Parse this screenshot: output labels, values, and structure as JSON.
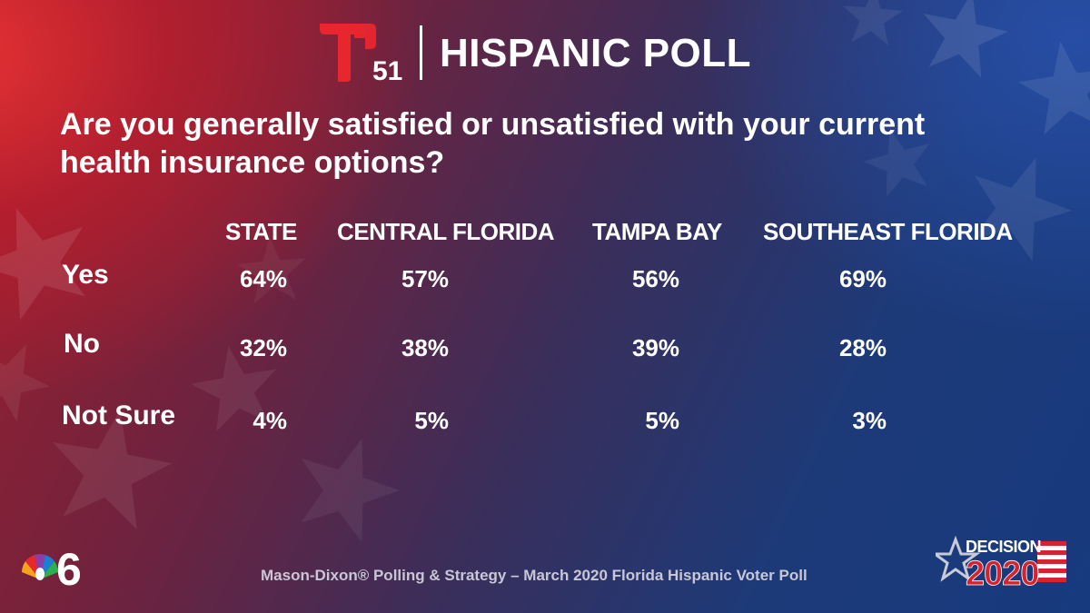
{
  "header": {
    "logo_number": "51",
    "title": "HISPANIC POLL"
  },
  "question": "Are you generally satisfied or unsatisfied with your current health insurance options?",
  "chart_data": {
    "type": "table",
    "columns": [
      "STATE",
      "CENTRAL FLORIDA",
      "TAMPA BAY",
      "SOUTHEAST FLORIDA"
    ],
    "rows": [
      {
        "label": "Yes",
        "values": [
          "64%",
          "57%",
          "56%",
          "69%"
        ]
      },
      {
        "label": "No",
        "values": [
          "32%",
          "38%",
          "39%",
          "28%"
        ]
      },
      {
        "label": "Not Sure",
        "values": [
          "4%",
          "5%",
          "5%",
          "3%"
        ]
      }
    ]
  },
  "footer": {
    "source": "Mason-Dixon® Polling & Strategy – March 2020 Florida Hispanic Voter Poll",
    "nbc_number": "6",
    "decision_word": "DECISION",
    "decision_year": "2020"
  },
  "colors": {
    "telemundo_red": "#e8262e",
    "source_text": "#c9c6d6",
    "decision_red": "#d6232f"
  },
  "icons": [
    "telemundo-t-logo",
    "nbc-peacock-icon",
    "decision-2020-star-icon"
  ]
}
